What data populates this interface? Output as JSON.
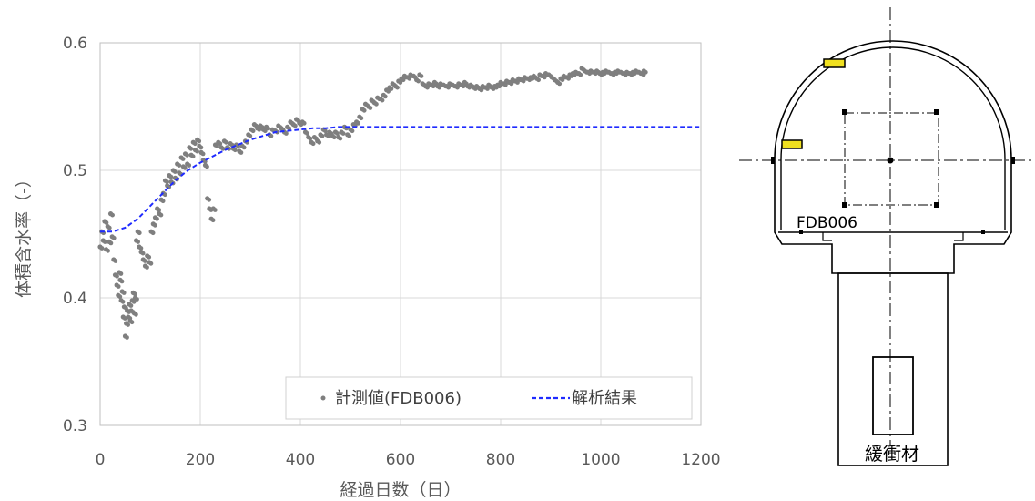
{
  "chart_data": {
    "type": "scatter",
    "xlabel": "経過日数（日）",
    "ylabel": "体積含水率（-）",
    "xlim": [
      0,
      1200
    ],
    "ylim": [
      0.3,
      0.6
    ],
    "xticks": [
      "0",
      "200",
      "400",
      "600",
      "800",
      "1000",
      "1200"
    ],
    "yticks": [
      "0.3",
      "0.4",
      "0.5",
      "0.6"
    ],
    "grid": true,
    "legend_position": "bottom-right",
    "series": [
      {
        "name": "計測値(FDB006)",
        "kind": "scatter",
        "color": "#7f7f7f",
        "points": [
          [
            0,
            0.44
          ],
          [
            3,
            0.452
          ],
          [
            6,
            0.445
          ],
          [
            9,
            0.46
          ],
          [
            12,
            0.438
          ],
          [
            15,
            0.456
          ],
          [
            18,
            0.444
          ],
          [
            21,
            0.466
          ],
          [
            24,
            0.448
          ],
          [
            27,
            0.43
          ],
          [
            30,
            0.418
          ],
          [
            33,
            0.41
          ],
          [
            36,
            0.402
          ],
          [
            38,
            0.42
          ],
          [
            40,
            0.414
          ],
          [
            42,
            0.398
          ],
          [
            44,
            0.405
          ],
          [
            46,
            0.385
          ],
          [
            48,
            0.393
          ],
          [
            50,
            0.37
          ],
          [
            52,
            0.38
          ],
          [
            54,
            0.39
          ],
          [
            56,
            0.385
          ],
          [
            58,
            0.395
          ],
          [
            60,
            0.382
          ],
          [
            62,
            0.39
          ],
          [
            64,
            0.398
          ],
          [
            66,
            0.404
          ],
          [
            68,
            0.388
          ],
          [
            70,
            0.4
          ],
          [
            72,
            0.445
          ],
          [
            75,
            0.452
          ],
          [
            78,
            0.44
          ],
          [
            82,
            0.436
          ],
          [
            86,
            0.43
          ],
          [
            90,
            0.425
          ],
          [
            94,
            0.433
          ],
          [
            98,
            0.428
          ],
          [
            102,
            0.452
          ],
          [
            106,
            0.458
          ],
          [
            110,
            0.463
          ],
          [
            114,
            0.47
          ],
          [
            118,
            0.466
          ],
          [
            122,
            0.477
          ],
          [
            126,
            0.482
          ],
          [
            130,
            0.492
          ],
          [
            134,
            0.488
          ],
          [
            138,
            0.496
          ],
          [
            142,
            0.491
          ],
          [
            146,
            0.5
          ],
          [
            150,
            0.494
          ],
          [
            154,
            0.505
          ],
          [
            158,
            0.498
          ],
          [
            162,
            0.51
          ],
          [
            166,
            0.503
          ],
          [
            170,
            0.513
          ],
          [
            174,
            0.505
          ],
          [
            178,
            0.518
          ],
          [
            182,
            0.512
          ],
          [
            186,
            0.522
          ],
          [
            190,
            0.516
          ],
          [
            194,
            0.524
          ],
          [
            198,
            0.519
          ],
          [
            202,
            0.514
          ],
          [
            206,
            0.508
          ],
          [
            210,
            0.504
          ],
          [
            214,
            0.478
          ],
          [
            218,
            0.47
          ],
          [
            222,
            0.462
          ],
          [
            226,
            0.47
          ],
          [
            230,
            0.52
          ],
          [
            236,
            0.522
          ],
          [
            242,
            0.518
          ],
          [
            248,
            0.523
          ],
          [
            254,
            0.518
          ],
          [
            260,
            0.521
          ],
          [
            266,
            0.517
          ],
          [
            272,
            0.52
          ],
          [
            278,
            0.515
          ],
          [
            284,
            0.519
          ],
          [
            290,
            0.523
          ],
          [
            296,
            0.528
          ],
          [
            302,
            0.532
          ],
          [
            308,
            0.536
          ],
          [
            314,
            0.533
          ],
          [
            320,
            0.535
          ],
          [
            326,
            0.532
          ],
          [
            332,
            0.534
          ],
          [
            338,
            0.528
          ],
          [
            344,
            0.532
          ],
          [
            350,
            0.531
          ],
          [
            356,
            0.535
          ],
          [
            362,
            0.533
          ],
          [
            368,
            0.53
          ],
          [
            374,
            0.534
          ],
          [
            380,
            0.538
          ],
          [
            386,
            0.536
          ],
          [
            392,
            0.54
          ],
          [
            398,
            0.537
          ],
          [
            404,
            0.538
          ],
          [
            410,
            0.53
          ],
          [
            416,
            0.526
          ],
          [
            422,
            0.522
          ],
          [
            428,
            0.526
          ],
          [
            434,
            0.523
          ],
          [
            440,
            0.528
          ],
          [
            446,
            0.532
          ],
          [
            452,
            0.528
          ],
          [
            458,
            0.53
          ],
          [
            464,
            0.527
          ],
          [
            470,
            0.53
          ],
          [
            476,
            0.526
          ],
          [
            482,
            0.53
          ],
          [
            488,
            0.534
          ],
          [
            494,
            0.528
          ],
          [
            500,
            0.532
          ],
          [
            506,
            0.536
          ],
          [
            512,
            0.538
          ],
          [
            518,
            0.542
          ],
          [
            524,
            0.548
          ],
          [
            530,
            0.552
          ],
          [
            536,
            0.55
          ],
          [
            542,
            0.555
          ],
          [
            548,
            0.553
          ],
          [
            554,
            0.557
          ],
          [
            560,
            0.556
          ],
          [
            566,
            0.559
          ],
          [
            572,
            0.563
          ],
          [
            578,
            0.565
          ],
          [
            584,
            0.568
          ],
          [
            590,
            0.566
          ],
          [
            596,
            0.57
          ],
          [
            602,
            0.572
          ],
          [
            608,
            0.574
          ],
          [
            614,
            0.573
          ],
          [
            620,
            0.575
          ],
          [
            626,
            0.574
          ],
          [
            632,
            0.571
          ],
          [
            638,
            0.575
          ],
          [
            644,
            0.568
          ],
          [
            650,
            0.566
          ],
          [
            656,
            0.568
          ],
          [
            662,
            0.567
          ],
          [
            668,
            0.569
          ],
          [
            674,
            0.566
          ],
          [
            680,
            0.568
          ],
          [
            686,
            0.567
          ],
          [
            692,
            0.566
          ],
          [
            698,
            0.568
          ],
          [
            704,
            0.567
          ],
          [
            710,
            0.566
          ],
          [
            716,
            0.568
          ],
          [
            722,
            0.567
          ],
          [
            728,
            0.569
          ],
          [
            734,
            0.566
          ],
          [
            740,
            0.567
          ],
          [
            746,
            0.565
          ],
          [
            752,
            0.566
          ],
          [
            758,
            0.564
          ],
          [
            764,
            0.566
          ],
          [
            770,
            0.565
          ],
          [
            776,
            0.567
          ],
          [
            782,
            0.565
          ],
          [
            788,
            0.566
          ],
          [
            794,
            0.567
          ],
          [
            800,
            0.569
          ],
          [
            806,
            0.568
          ],
          [
            812,
            0.57
          ],
          [
            818,
            0.569
          ],
          [
            824,
            0.571
          ],
          [
            830,
            0.57
          ],
          [
            836,
            0.572
          ],
          [
            842,
            0.571
          ],
          [
            848,
            0.573
          ],
          [
            854,
            0.572
          ],
          [
            860,
            0.573
          ],
          [
            866,
            0.574
          ],
          [
            872,
            0.572
          ],
          [
            878,
            0.575
          ],
          [
            884,
            0.574
          ],
          [
            890,
            0.576
          ],
          [
            896,
            0.575
          ],
          [
            902,
            0.573
          ],
          [
            908,
            0.571
          ],
          [
            914,
            0.569
          ],
          [
            920,
            0.572
          ],
          [
            926,
            0.574
          ],
          [
            932,
            0.573
          ],
          [
            938,
            0.575
          ],
          [
            944,
            0.576
          ],
          [
            950,
            0.577
          ],
          [
            956,
            0.576
          ],
          [
            962,
            0.58
          ],
          [
            968,
            0.578
          ],
          [
            974,
            0.577
          ],
          [
            980,
            0.578
          ],
          [
            986,
            0.577
          ],
          [
            992,
            0.578
          ],
          [
            998,
            0.576
          ],
          [
            1004,
            0.577
          ],
          [
            1010,
            0.578
          ],
          [
            1016,
            0.577
          ],
          [
            1022,
            0.576
          ],
          [
            1028,
            0.577
          ],
          [
            1034,
            0.578
          ],
          [
            1040,
            0.577
          ],
          [
            1046,
            0.576
          ],
          [
            1052,
            0.577
          ],
          [
            1058,
            0.576
          ],
          [
            1064,
            0.577
          ],
          [
            1070,
            0.578
          ],
          [
            1076,
            0.577
          ],
          [
            1082,
            0.576
          ],
          [
            1086,
            0.578
          ]
        ]
      },
      {
        "name": "解析結果",
        "kind": "line",
        "color": "#1f2bff",
        "dash": true,
        "points": [
          [
            0,
            0.452
          ],
          [
            25,
            0.452
          ],
          [
            50,
            0.455
          ],
          [
            75,
            0.462
          ],
          [
            100,
            0.472
          ],
          [
            125,
            0.482
          ],
          [
            150,
            0.492
          ],
          [
            175,
            0.5
          ],
          [
            200,
            0.506
          ],
          [
            225,
            0.511
          ],
          [
            250,
            0.516
          ],
          [
            275,
            0.52
          ],
          [
            300,
            0.524
          ],
          [
            325,
            0.527
          ],
          [
            350,
            0.53
          ],
          [
            375,
            0.531
          ],
          [
            400,
            0.532
          ],
          [
            425,
            0.533
          ],
          [
            450,
            0.533
          ],
          [
            475,
            0.534
          ],
          [
            500,
            0.534
          ],
          [
            550,
            0.534
          ],
          [
            600,
            0.534
          ],
          [
            700,
            0.534
          ],
          [
            800,
            0.534
          ],
          [
            900,
            0.534
          ],
          [
            1000,
            0.534
          ],
          [
            1100,
            0.534
          ],
          [
            1200,
            0.534
          ]
        ]
      }
    ]
  },
  "diagram": {
    "point_label": "FDB006",
    "buffer_label": "緩衝材",
    "sensor_color": "#f0e020"
  }
}
